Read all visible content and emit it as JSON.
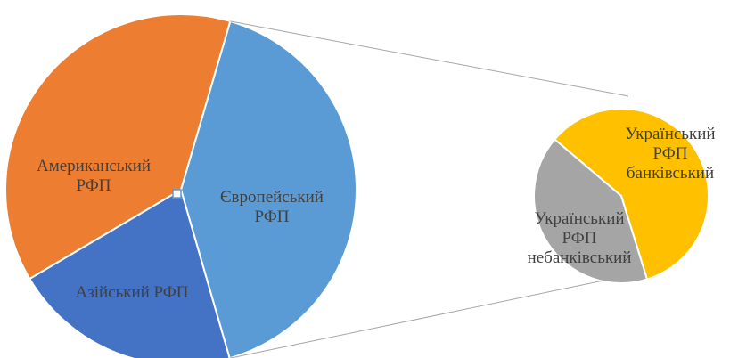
{
  "chart_data": {
    "type": "pie-of-pie",
    "categories": [
      "Європейський\nРФП",
      "Азійський РФП",
      "Американський\nРФП"
    ],
    "values": [
      41,
      21,
      38
    ],
    "colors": [
      "#5B9BD5",
      "#4472C4",
      "#ED7D31"
    ],
    "secondary": {
      "categories": [
        "Український\nРФП\nбанківський",
        "Український\nРФП\nнебанківський"
      ],
      "values": [
        59,
        41
      ],
      "colors": [
        "#FFC000",
        "#A5A5A5"
      ]
    }
  }
}
